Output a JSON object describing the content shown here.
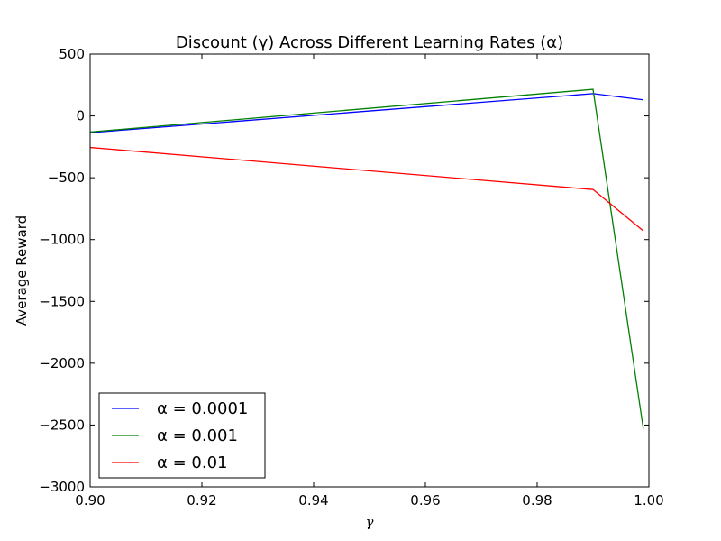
{
  "chart_data": {
    "type": "line",
    "title": "Discount (γ) Across Different Learning Rates (α)",
    "xlabel": "γ",
    "ylabel": "Average Reward",
    "xlim": [
      0.9,
      1.0
    ],
    "ylim": [
      -3000,
      500
    ],
    "x_ticks": [
      "0.90",
      "0.92",
      "0.94",
      "0.96",
      "0.98",
      "1.00"
    ],
    "y_ticks": [
      "500",
      "0",
      "−500",
      "−1000",
      "−1500",
      "−2000",
      "−2500",
      "−3000"
    ],
    "x": [
      0.9,
      0.99,
      0.999
    ],
    "series": [
      {
        "name": "α = 0.0001",
        "color": "#0000ff",
        "values": [
          -135,
          180,
          130
        ]
      },
      {
        "name": "α = 0.001",
        "color": "#008000",
        "values": [
          -130,
          215,
          -2530
        ]
      },
      {
        "name": "α = 0.01",
        "color": "#ff0000",
        "values": [
          -255,
          -595,
          -930
        ]
      }
    ],
    "grid": false,
    "legend_position": "lower-left"
  }
}
